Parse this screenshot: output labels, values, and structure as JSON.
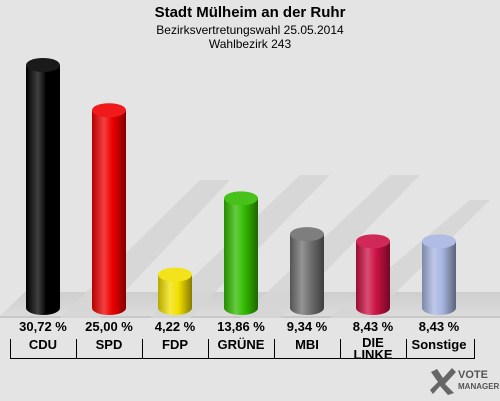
{
  "header": {
    "title": "Stadt Mülheim an der Ruhr",
    "subtitle": "Bezirksvertretungswahl 25.05.2014",
    "district": "Wahlbezirk 243"
  },
  "logo": {
    "line1": "VOTE",
    "line2": "MANAGER",
    "icon": "checkmark-x-icon"
  },
  "chart_data": {
    "type": "bar",
    "categories": [
      "CDU",
      "SPD",
      "FDP",
      "GRÜNE",
      "MBI",
      "DIE\nLINKE",
      "Sonstige"
    ],
    "values": [
      30.72,
      25.0,
      4.22,
      13.86,
      9.34,
      8.43,
      8.43
    ],
    "value_labels": [
      "30,72 %",
      "25,00 %",
      "4,22 %",
      "13,86 %",
      "9,34 %",
      "8,43 %",
      "8,43 %"
    ],
    "colors": [
      "#000000",
      "#ee0000",
      "#f2e000",
      "#33bb00",
      "#707070",
      "#cc1144",
      "#a7b5e0"
    ],
    "ylim": [
      0,
      30.72
    ],
    "grid": false
  }
}
